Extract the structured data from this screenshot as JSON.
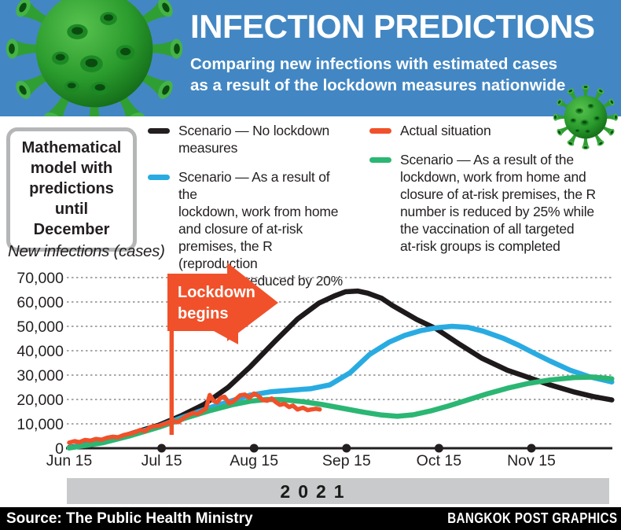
{
  "banner": {
    "title": "INFECTION PREDICTIONS",
    "subtitle": "Comparing new infections with estimated cases\nas a result of the lockdown measures nationwide",
    "background_color": "#4287c3"
  },
  "model_box": {
    "text": "Mathematical\nmodel with\npredictions until\nDecember"
  },
  "legend": {
    "items": [
      {
        "label": "Scenario — No lockdown\nmeasures",
        "color": "#231f20"
      },
      {
        "label": "Scenario — As a result of the\nlockdown, work from home\nand closure of at-risk\npremises, the R (reproduction\nnumber) is reduced by 20%",
        "color": "#29abe2"
      },
      {
        "label": "Actual situation",
        "color": "#f0512a"
      },
      {
        "label": "Scenario — As a result of the\nlockdown, work from home and\nclosure of at-risk premises, the R\nnumber is reduced by 25% while\nthe vaccination of all targeted\nat-risk groups is completed",
        "color": "#2bb673"
      }
    ]
  },
  "chart": {
    "y_axis_title": "New infections (cases)",
    "annotation": {
      "line1": "Lockdown",
      "line2": "begins",
      "color": "#f0512a"
    }
  },
  "chart_data": {
    "type": "line",
    "title": "Infection predictions — mathematical model with predictions until December",
    "ylabel": "New infections (cases)",
    "x_unit": "months after Jun 15, 2021",
    "y_unit": "cases",
    "ylim": [
      0,
      70000
    ],
    "grid": "dotted horizontal gridlines",
    "legend_position": "above chart, two columns",
    "annotation": "Lockdown begins (mid-July)",
    "x_tick_labels": [
      "Jun 15",
      "Jul 15",
      "Aug 15",
      "Sep 15",
      "Oct 15",
      "Nov 15"
    ],
    "y_axis": [
      {
        "label": "70,000",
        "value": 70000
      },
      {
        "label": "60,000",
        "value": 60000
      },
      {
        "label": "50,000",
        "value": 50000
      },
      {
        "label": "40,000",
        "value": 40000
      },
      {
        "label": "30,000",
        "value": 30000
      },
      {
        "label": "20,000",
        "value": 20000
      },
      {
        "label": "10,000",
        "value": 10000
      },
      {
        "label": "0",
        "value": 0
      }
    ],
    "series": [
      {
        "name": "Scenario — No lockdown measures",
        "color": "#1e1a1b",
        "stroke_width": 6.5,
        "points": [
          [
            0,
            300
          ],
          [
            0.27,
            2000
          ],
          [
            0.53,
            4300
          ],
          [
            0.74,
            6800
          ],
          [
            0.97,
            9500
          ],
          [
            1.22,
            13500
          ],
          [
            1.46,
            18000
          ],
          [
            1.72,
            25000
          ],
          [
            1.96,
            33500
          ],
          [
            2.23,
            44000
          ],
          [
            2.47,
            53000
          ],
          [
            2.7,
            59500
          ],
          [
            2.87,
            62500
          ],
          [
            2.99,
            64200
          ],
          [
            3.12,
            64500
          ],
          [
            3.23,
            63600
          ],
          [
            3.38,
            61500
          ],
          [
            3.5,
            58500
          ],
          [
            3.76,
            52800
          ],
          [
            3.97,
            49000
          ],
          [
            4.23,
            42500
          ],
          [
            4.46,
            37000
          ],
          [
            4.74,
            32000
          ],
          [
            4.97,
            29000
          ],
          [
            5.2,
            26000
          ],
          [
            5.47,
            23000
          ],
          [
            5.67,
            21200
          ],
          [
            5.87,
            19800
          ]
        ]
      },
      {
        "name": "Scenario — As a result of the lockdown, work from home and closure of at-risk premises, the R (reproduction number) is reduced by 20%",
        "color": "#29abe2",
        "stroke_width": 6.5,
        "points": [
          [
            0,
            200
          ],
          [
            0.36,
            2500
          ],
          [
            0.65,
            5500
          ],
          [
            0.97,
            9000
          ],
          [
            1.25,
            13000
          ],
          [
            1.51,
            16500
          ],
          [
            1.76,
            19500
          ],
          [
            1.96,
            21800
          ],
          [
            2.19,
            23200
          ],
          [
            2.4,
            23800
          ],
          [
            2.61,
            24400
          ],
          [
            2.82,
            26000
          ],
          [
            3.04,
            31000
          ],
          [
            3.25,
            38500
          ],
          [
            3.46,
            43500
          ],
          [
            3.63,
            46300
          ],
          [
            3.8,
            48200
          ],
          [
            3.97,
            49400
          ],
          [
            4.14,
            50000
          ],
          [
            4.31,
            49600
          ],
          [
            4.48,
            48000
          ],
          [
            4.69,
            45200
          ],
          [
            4.86,
            42300
          ],
          [
            5.03,
            39000
          ],
          [
            5.2,
            35800
          ],
          [
            5.42,
            32000
          ],
          [
            5.63,
            29300
          ],
          [
            5.87,
            27200
          ]
        ]
      },
      {
        "name": "Scenario — As a result of the lockdown, work from home and closure of at-risk premises, the R number is reduced by 25% while the vaccination of all targeted at-risk groups is completed",
        "color": "#2bb673",
        "stroke_width": 6.5,
        "points": [
          [
            0,
            100
          ],
          [
            0.36,
            2200
          ],
          [
            0.65,
            5000
          ],
          [
            0.97,
            8600
          ],
          [
            1.25,
            12300
          ],
          [
            1.51,
            15300
          ],
          [
            1.76,
            17800
          ],
          [
            1.96,
            19300
          ],
          [
            2.14,
            20000
          ],
          [
            2.31,
            19900
          ],
          [
            2.53,
            19100
          ],
          [
            2.74,
            17900
          ],
          [
            2.97,
            16300
          ],
          [
            3.18,
            14800
          ],
          [
            3.38,
            13600
          ],
          [
            3.55,
            13100
          ],
          [
            3.72,
            13700
          ],
          [
            3.91,
            15300
          ],
          [
            4.1,
            17300
          ],
          [
            4.31,
            19800
          ],
          [
            4.52,
            22300
          ],
          [
            4.74,
            24600
          ],
          [
            4.97,
            26600
          ],
          [
            5.2,
            28000
          ],
          [
            5.46,
            29000
          ],
          [
            5.67,
            29200
          ],
          [
            5.87,
            28500
          ]
        ]
      },
      {
        "name": "Actual situation",
        "color": "#f0512a",
        "stroke_width": 5.5,
        "points": [
          [
            0,
            2300
          ],
          [
            0.06,
            2900
          ],
          [
            0.11,
            2500
          ],
          [
            0.17,
            3400
          ],
          [
            0.23,
            3100
          ],
          [
            0.29,
            3800
          ],
          [
            0.35,
            3500
          ],
          [
            0.41,
            4300
          ],
          [
            0.47,
            4700
          ],
          [
            0.53,
            4500
          ],
          [
            0.59,
            5400
          ],
          [
            0.65,
            5900
          ],
          [
            0.71,
            6500
          ],
          [
            0.77,
            7500
          ],
          [
            0.82,
            7000
          ],
          [
            0.88,
            8700
          ],
          [
            0.93,
            9000
          ],
          [
            0.98,
            9300
          ],
          [
            1.03,
            9900
          ],
          [
            1.08,
            10600
          ],
          [
            1.13,
            11200
          ],
          [
            1.18,
            10700
          ],
          [
            1.23,
            12200
          ],
          [
            1.28,
            13400
          ],
          [
            1.34,
            14500
          ],
          [
            1.39,
            14100
          ],
          [
            1.44,
            15300
          ],
          [
            1.48,
            16200
          ],
          [
            1.52,
            21800
          ],
          [
            1.56,
            19500
          ],
          [
            1.6,
            18800
          ],
          [
            1.64,
            20700
          ],
          [
            1.68,
            21100
          ],
          [
            1.73,
            18500
          ],
          [
            1.77,
            19100
          ],
          [
            1.81,
            20400
          ],
          [
            1.85,
            21700
          ],
          [
            1.9,
            22000
          ],
          [
            1.95,
            20700
          ],
          [
            2,
            22400
          ],
          [
            2.05,
            21400
          ],
          [
            2.09,
            19800
          ],
          [
            2.14,
            19500
          ],
          [
            2.19,
            20400
          ],
          [
            2.24,
            18800
          ],
          [
            2.28,
            17800
          ],
          [
            2.33,
            18200
          ],
          [
            2.38,
            16900
          ],
          [
            2.42,
            17500
          ],
          [
            2.47,
            15900
          ],
          [
            2.53,
            16600
          ],
          [
            2.58,
            15600
          ],
          [
            2.62,
            15900
          ],
          [
            2.67,
            16200
          ],
          [
            2.71,
            15900
          ]
        ]
      }
    ]
  },
  "year_bar": {
    "label": "2021"
  },
  "footer": {
    "source": "Source: The Public Health Ministry",
    "credit": "BANGKOK POST GRAPHICS"
  }
}
